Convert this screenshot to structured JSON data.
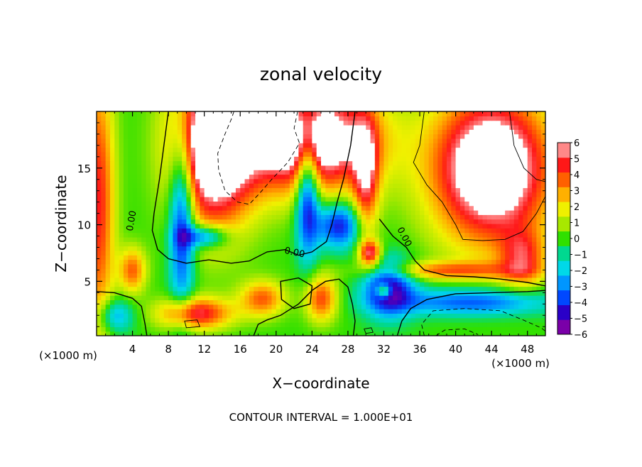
{
  "chart_data": {
    "type": "heatmap",
    "title": "zonal velocity",
    "xlabel": "X−coordinate",
    "ylabel": "Z−coordinate",
    "x_unit_label": "(×1000 m)",
    "y_unit_label": "(×1000 m)",
    "xlim": [
      0,
      50
    ],
    "ylim": [
      0.2,
      20
    ],
    "x_ticks": [
      4,
      8,
      12,
      16,
      20,
      24,
      28,
      32,
      36,
      40,
      44,
      48
    ],
    "x_tick_labels": [
      "4",
      "8",
      "12",
      "16",
      "20",
      "24",
      "28",
      "32",
      "36",
      "40",
      "44",
      "48"
    ],
    "y_ticks": [
      5,
      10,
      15
    ],
    "y_tick_labels": [
      "5",
      "10",
      "15"
    ],
    "colorbar": {
      "min": -6,
      "max": 6,
      "ticks": [
        6,
        5,
        4,
        3,
        2,
        1,
        0,
        -1,
        -2,
        -3,
        -4,
        -5,
        -6
      ],
      "tick_labels": [
        "6",
        "5",
        "4",
        "3",
        "2",
        "1",
        "0",
        "−1",
        "−2",
        "−3",
        "−4",
        "−5",
        "−6"
      ],
      "colors": [
        "#7a00a8",
        "#2a00c8",
        "#0048ff",
        "#0096ff",
        "#00d8e8",
        "#00d890",
        "#30e000",
        "#a8e800",
        "#f0f000",
        "#ffb000",
        "#ff6000",
        "#ff1818",
        "#ff8888"
      ],
      "saturated_fill": "#ffffff"
    },
    "contour_label": "0.00",
    "contour_labels": [
      {
        "x": 4.2,
        "z": 10.3,
        "text": "0.00"
      },
      {
        "x": 22.0,
        "z": 7.3,
        "text": "0.00"
      },
      {
        "x": 34.0,
        "z": 8.8,
        "text": "0.00"
      }
    ],
    "contour_interval_text": "CONTOUR INTERVAL = 1.000E+01",
    "note": ""
  }
}
